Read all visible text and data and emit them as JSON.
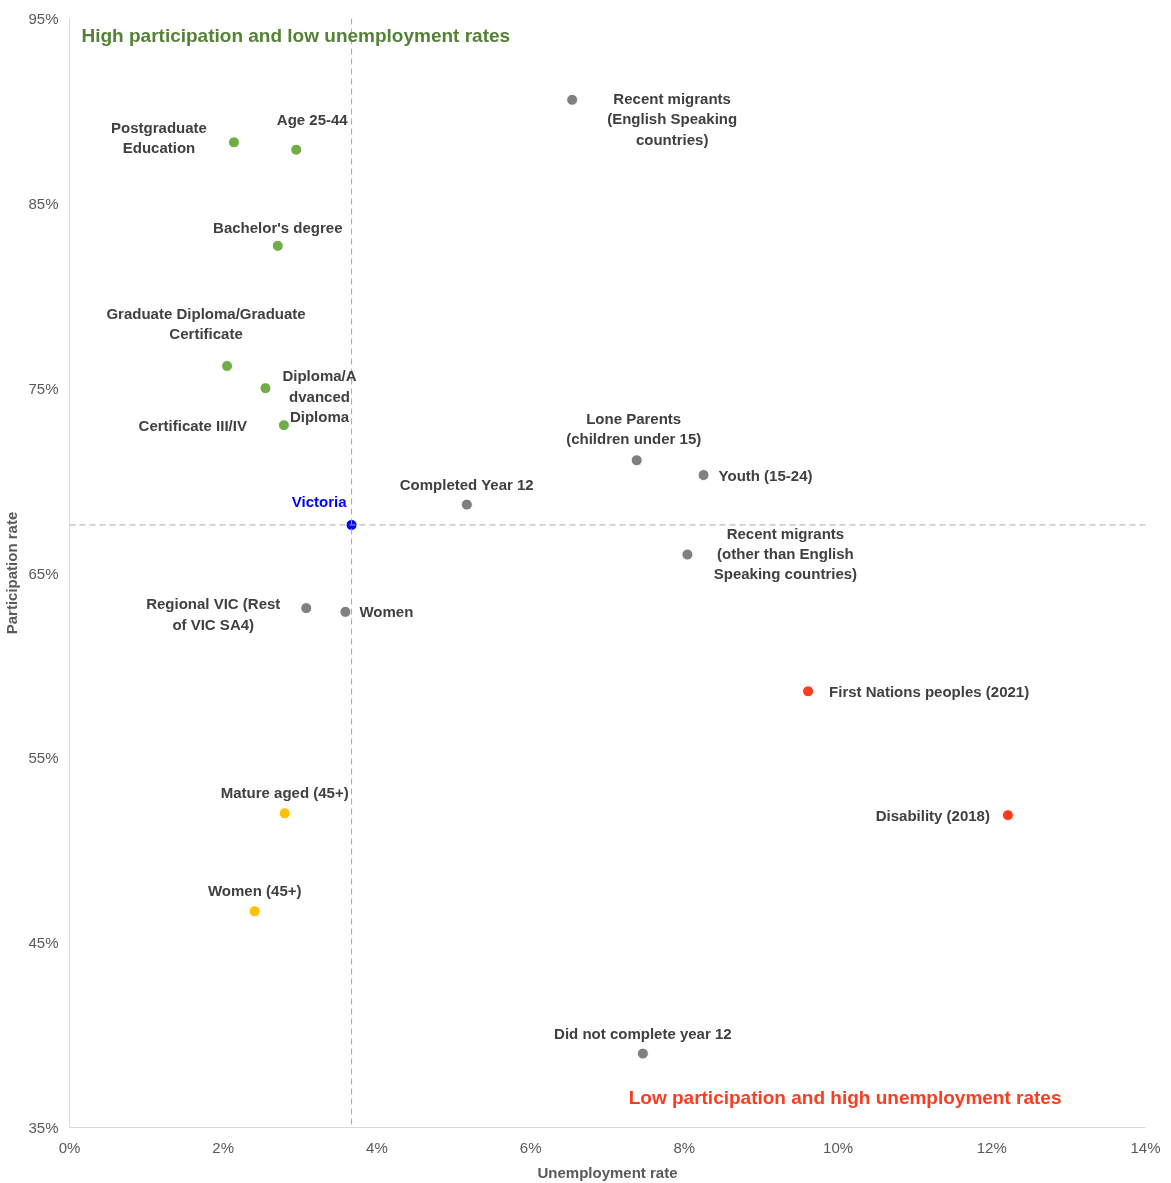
{
  "chart_data": {
    "type": "scatter",
    "xlabel": "Unemployment rate",
    "ylabel": "Participation rate",
    "xlim": [
      0,
      14
    ],
    "ylim": [
      35,
      95
    ],
    "xticks": [
      {
        "value": 0,
        "label": "0%"
      },
      {
        "value": 2,
        "label": "2%"
      },
      {
        "value": 4,
        "label": "4%"
      },
      {
        "value": 6,
        "label": "6%"
      },
      {
        "value": 8,
        "label": "8%"
      },
      {
        "value": 10,
        "label": "10%"
      },
      {
        "value": 12,
        "label": "12%"
      },
      {
        "value": 14,
        "label": "14%"
      }
    ],
    "yticks": [
      {
        "value": 35,
        "label": "35%"
      },
      {
        "value": 45,
        "label": "45%"
      },
      {
        "value": 55,
        "label": "55%"
      },
      {
        "value": 65,
        "label": "65%"
      },
      {
        "value": 75,
        "label": "75%"
      },
      {
        "value": 85,
        "label": "85%"
      },
      {
        "value": 95,
        "label": "95%"
      }
    ],
    "grid": false,
    "marker": "circle",
    "series": [
      {
        "color": "#70ad47",
        "x": [
          2.14,
          2.95,
          2.71,
          2.05,
          2.55,
          2.79
        ],
        "values": [
          88.3,
          87.9,
          82.7,
          76.2,
          75.0,
          73.0
        ]
      },
      {
        "color": "#808080",
        "x": [
          6.54,
          7.38,
          8.25,
          5.17,
          8.04,
          3.08,
          3.59,
          7.46
        ],
        "values": [
          90.6,
          71.1,
          70.3,
          68.7,
          66.0,
          63.1,
          62.9,
          39.0
        ]
      },
      {
        "color": "#0000ff",
        "x": [
          3.67
        ],
        "values": [
          67.6
        ]
      },
      {
        "color": "#ffc000",
        "x": [
          2.8,
          2.41
        ],
        "values": [
          52.0,
          46.7
        ]
      },
      {
        "color": "#ff3b1f",
        "x": [
          9.61,
          12.21
        ],
        "values": [
          58.6,
          51.9
        ]
      }
    ],
    "ref_lines": [
      {
        "axis": "x",
        "value": 3.67,
        "color": "#a6a6a6",
        "line_style": "dashed"
      },
      {
        "axis": "y",
        "value": 67.6,
        "color": "#a6a6a6",
        "line_style": "dashed"
      }
    ],
    "annotations": [
      {
        "text": "Recent migrants\n(English Speaking\ncountries)",
        "x": 6.54,
        "y": 90.6
      },
      {
        "text": "Postgraduate\nEducation",
        "x": 2.14,
        "y": 88.3
      },
      {
        "text": "Age 25-44",
        "x": 2.95,
        "y": 87.9
      },
      {
        "text": "Bachelor's degree",
        "x": 2.71,
        "y": 82.7
      },
      {
        "text": "Graduate Diploma/Graduate\nCertificate",
        "x": 2.05,
        "y": 76.2
      },
      {
        "text": "Diploma/A\ndvanced\nDiploma",
        "x": 2.55,
        "y": 75.0
      },
      {
        "text": "Certificate III/IV",
        "x": 2.79,
        "y": 73.0
      },
      {
        "text": "Lone Parents\n(children under 15)",
        "x": 7.38,
        "y": 71.1
      },
      {
        "text": "Youth (15-24)",
        "x": 8.25,
        "y": 70.3
      },
      {
        "text": "Completed Year 12",
        "x": 5.17,
        "y": 68.7
      },
      {
        "text": "Victoria",
        "x": 3.67,
        "y": 67.6
      },
      {
        "text": "Recent migrants\n(other than English\nSpeaking countries)",
        "x": 8.04,
        "y": 66.0
      },
      {
        "text": "Regional VIC (Rest\nof VIC SA4)",
        "x": 3.08,
        "y": 63.1
      },
      {
        "text": "Women",
        "x": 3.59,
        "y": 62.9
      },
      {
        "text": "First Nations peoples (2021)",
        "x": 9.61,
        "y": 58.6
      },
      {
        "text": "Disability (2018)",
        "x": 12.21,
        "y": 51.9
      },
      {
        "text": "Mature aged (45+)",
        "x": 2.8,
        "y": 52.0
      },
      {
        "text": "Women (45+)",
        "x": 2.41,
        "y": 46.7
      },
      {
        "text": "Did not complete year 12",
        "x": 7.46,
        "y": 39.0
      },
      "High participation and low unemployment rates",
      "Low participation and high unemployment rates"
    ]
  }
}
